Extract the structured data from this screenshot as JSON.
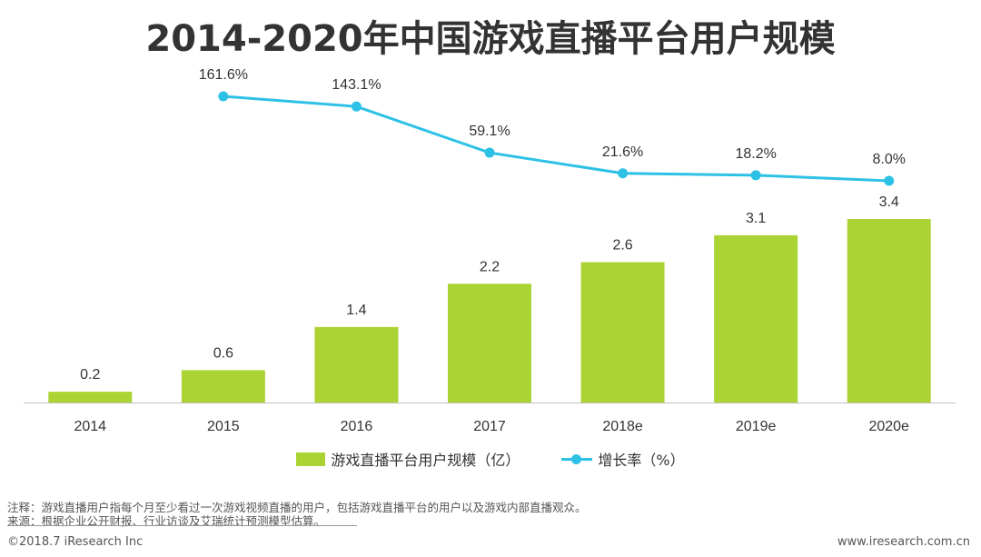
{
  "title": "2014-2020年中国游戏直播平台用户规模",
  "colors": {
    "bar": "#acd334",
    "line": "#2ec1e6",
    "axis": "#bfbfbf",
    "text": "#333333"
  },
  "chart_data": {
    "type": "bar",
    "categories": [
      "2014",
      "2015",
      "2016",
      "2017",
      "2018e",
      "2019e",
      "2020e"
    ],
    "series": [
      {
        "name": "游戏直播平台用户规模（亿）",
        "type": "bar",
        "values": [
          0.2,
          0.6,
          1.4,
          2.2,
          2.6,
          3.1,
          3.4
        ],
        "labels": [
          "0.2",
          "0.6",
          "1.4",
          "2.2",
          "2.6",
          "3.1",
          "3.4"
        ]
      },
      {
        "name": "增长率（%）",
        "type": "line",
        "values": [
          null,
          161.6,
          143.1,
          59.1,
          21.6,
          18.2,
          8.0
        ],
        "labels": [
          "",
          "161.6%",
          "143.1%",
          "59.1%",
          "21.6%",
          "18.2%",
          "8.0%"
        ]
      }
    ],
    "legend_position": "bottom"
  },
  "notes": {
    "note": "注释：游戏直播用户指每个月至少看过一次游戏视频直播的用户，包括游戏直播平台的用户以及游戏内部直播观众。",
    "source": "来源：根据企业公开财报、行业访谈及艾瑞统计预测模型估算。"
  },
  "footer": {
    "copyright": "©2018.7 iResearch Inc",
    "website": "www.iresearch.com.cn"
  }
}
